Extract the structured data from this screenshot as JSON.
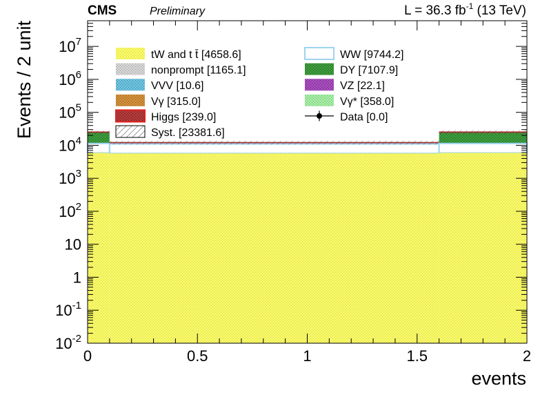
{
  "header": {
    "experiment": "CMS",
    "status": "Preliminary",
    "lumi_prefix": "L = 36.3 fb",
    "lumi_exp": "-1",
    "lumi_suffix": " (13 TeV)"
  },
  "chart_data": {
    "type": "bar",
    "stacked": true,
    "log_y": true,
    "xlabel": "events",
    "ylabel": "Events / 2 unit",
    "xlim": [
      0,
      2
    ],
    "ylim": [
      0.01,
      60000000
    ],
    "x_ticks": [
      {
        "value": 0,
        "label": "0"
      },
      {
        "value": 0.5,
        "label": "0.5"
      },
      {
        "value": 1,
        "label": "1"
      },
      {
        "value": 1.5,
        "label": "1.5"
      },
      {
        "value": 2,
        "label": "2"
      }
    ],
    "y_ticks": [
      {
        "value": 0.01,
        "base": "10",
        "exp": "-2"
      },
      {
        "value": 0.1,
        "base": "10",
        "exp": "-1"
      },
      {
        "value": 1,
        "base": "1",
        "exp": ""
      },
      {
        "value": 10,
        "base": "10",
        "exp": ""
      },
      {
        "value": 100,
        "base": "10",
        "exp": "2"
      },
      {
        "value": 1000,
        "base": "10",
        "exp": "3"
      },
      {
        "value": 10000,
        "base": "10",
        "exp": "4"
      },
      {
        "value": 100000,
        "base": "10",
        "exp": "5"
      },
      {
        "value": 1000000,
        "base": "10",
        "exp": "6"
      },
      {
        "value": 10000000,
        "base": "10",
        "exp": "7"
      }
    ],
    "stack_order": [
      "Higgs",
      "VVV",
      "VZ",
      "Vgamma",
      "Vgammastar",
      "nonprompt",
      "DY",
      "WW",
      "top"
    ],
    "bins": [
      {
        "range": [
          0,
          0.1
        ],
        "top": 5900,
        "WW": 11400,
        "total": 25000
      },
      {
        "range": [
          0.1,
          1.6
        ],
        "top": 5700,
        "WW": 11000,
        "total": 12000
      },
      {
        "range": [
          1.6,
          2
        ],
        "top": 5900,
        "WW": 11400,
        "total": 25000
      }
    ],
    "series": [
      {
        "key": "top",
        "name": "tW and t",
        "name_tail": "t̄",
        "yield": "[4658.6]",
        "color": "#f7f76a",
        "pattern": "dots"
      },
      {
        "key": "WW",
        "name": "WW",
        "yield": "[9744.2]",
        "color": "#9dd3f0",
        "pattern": "hollow"
      },
      {
        "key": "nonprompt",
        "name": "nonprompt",
        "yield": "[1165.1]",
        "color": "#c8c8c8",
        "pattern": "dots"
      },
      {
        "key": "DY",
        "name": "DY",
        "yield": "[7107.9]",
        "color": "#2e8a2e",
        "pattern": "dots"
      },
      {
        "key": "VVV",
        "name": "VVV",
        "yield": "[10.6]",
        "color": "#5fb3d0",
        "pattern": "dots"
      },
      {
        "key": "VZ",
        "name": "VZ",
        "yield": "[22.1]",
        "color": "#9a3fb0",
        "pattern": "dots"
      },
      {
        "key": "Vgamma",
        "name": "Vγ",
        "yield": "[315.0]",
        "color": "#c8852f",
        "pattern": "dots"
      },
      {
        "key": "Vgammastar",
        "name": "Vγ*",
        "yield": "[358.0]",
        "color": "#8de28d",
        "pattern": "dots"
      },
      {
        "key": "Higgs",
        "name": "Higgs",
        "yield": "[239.0]",
        "color": "#a83232",
        "pattern": "dots",
        "edge": "#e02020"
      },
      {
        "key": "Syst",
        "name": "Syst.",
        "yield": "[23381.6]",
        "color": "#555555",
        "pattern": "hatch"
      },
      {
        "key": "Data",
        "name": "Data",
        "yield": "[0.0]",
        "color": "#000000",
        "pattern": "marker"
      }
    ],
    "legend_placement": "top, two columns",
    "grid": false
  }
}
